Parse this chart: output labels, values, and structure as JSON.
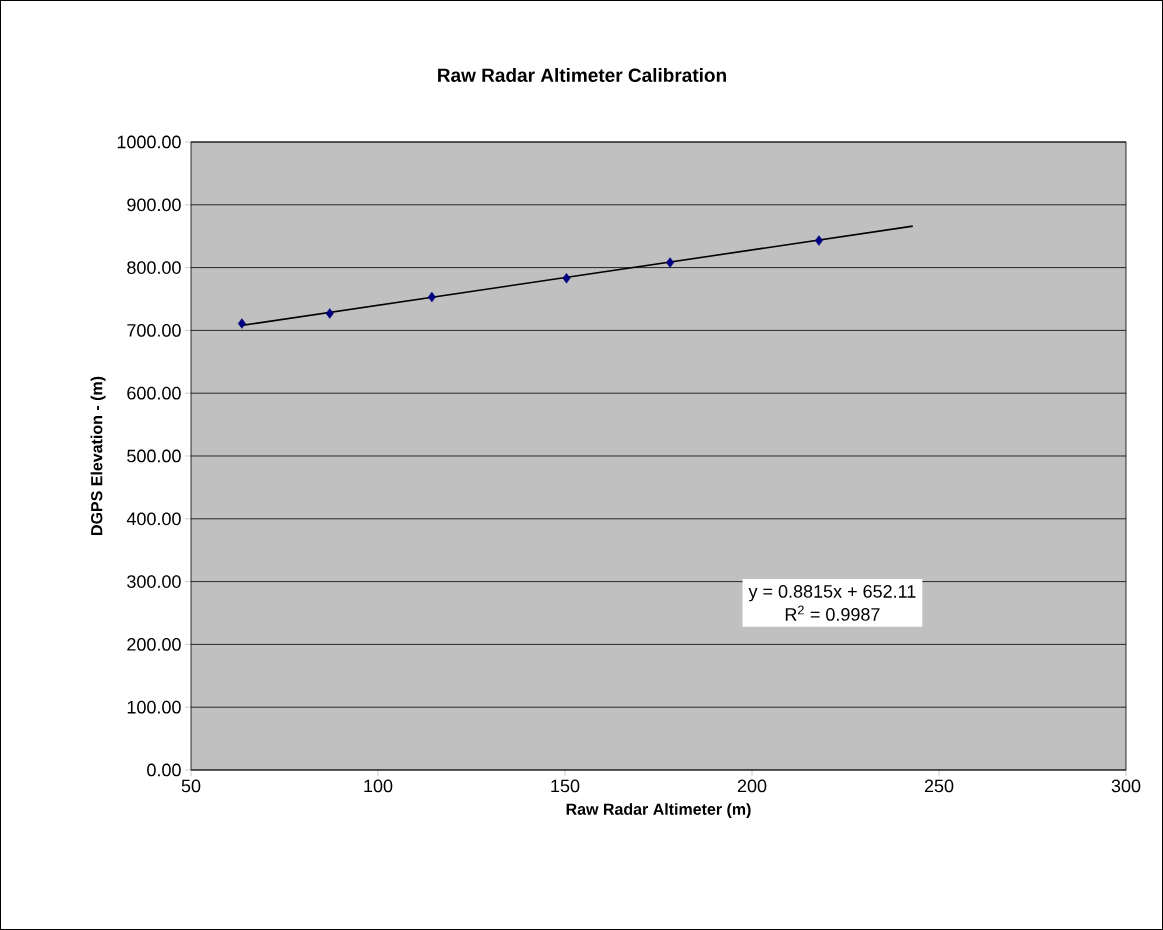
{
  "chart_data": {
    "type": "scatter",
    "title": "Raw Radar Altimeter Calibration",
    "xlabel": "Raw Radar Altimeter (m)",
    "ylabel": "DGPS Elevation - (m)",
    "xlim": [
      50,
      300
    ],
    "xticks": [
      50,
      100,
      150,
      200,
      250,
      300
    ],
    "ylim": [
      0,
      1000
    ],
    "yticks": [
      {
        "value": 0,
        "label": "0.00"
      },
      {
        "value": 100,
        "label": "100.00"
      },
      {
        "value": 200,
        "label": "200.00"
      },
      {
        "value": 300,
        "label": "300.00"
      },
      {
        "value": 400,
        "label": "400.00"
      },
      {
        "value": 500,
        "label": "500.00"
      },
      {
        "value": 600,
        "label": "600.00"
      },
      {
        "value": 700,
        "label": "700.00"
      },
      {
        "value": 800,
        "label": "800.00"
      },
      {
        "value": 900,
        "label": "900.00"
      },
      {
        "value": 1000,
        "label": "1000.00"
      }
    ],
    "grid": "y",
    "series": [
      {
        "color": "#000080",
        "marker": "diamond",
        "x": [
          63.6,
          87.1,
          114.4,
          150.4,
          178.1,
          217.9
        ],
        "values": [
          711,
          727,
          753,
          783,
          808,
          843
        ]
      },
      {
        "type": "line",
        "color": "#000000",
        "marker": "none",
        "line_style": "solid",
        "x": [
          63.6,
          243
        ],
        "values": [
          708,
          866
        ]
      }
    ],
    "annotations": [
      "y = 0.8815x + 652.11",
      "R$^{2}$ = 0.9987"
    ]
  }
}
